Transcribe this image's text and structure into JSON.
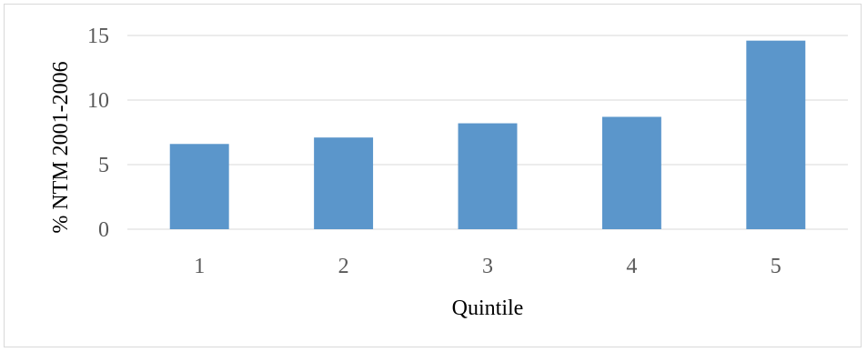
{
  "chart_data": {
    "type": "bar",
    "title": "",
    "xlabel": "Quintile",
    "ylabel": "% NTM 2001-2006",
    "categories": [
      "1",
      "2",
      "3",
      "4",
      "5"
    ],
    "values": [
      6.6,
      7.1,
      8.2,
      8.7,
      14.6
    ],
    "ylim": [
      0,
      15
    ],
    "yticks": [
      0,
      5,
      10,
      15
    ],
    "grid": true,
    "legend": "none",
    "colors": {
      "bar": "#5b96cb",
      "grid": "#d9d9d9",
      "tick_text": "#595959",
      "axis_title_text": "#000000"
    }
  }
}
